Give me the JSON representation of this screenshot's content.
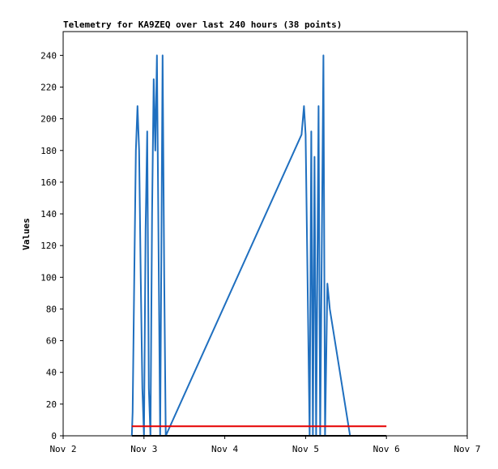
{
  "chart_data": {
    "type": "line",
    "title": "Telemetry for KA9ZEQ over last 240 hours (38 points)",
    "xlabel": "",
    "ylabel": "Values",
    "xlim": [
      0,
      5
    ],
    "ylim": [
      0,
      255
    ],
    "x_ticks": [
      {
        "value": 0,
        "label": "Nov 2"
      },
      {
        "value": 1,
        "label": "Nov 3"
      },
      {
        "value": 2,
        "label": "Nov 4"
      },
      {
        "value": 3,
        "label": "Nov 5"
      },
      {
        "value": 4,
        "label": "Nov 6"
      },
      {
        "value": 5,
        "label": "Nov 7"
      }
    ],
    "y_ticks": [
      0,
      20,
      40,
      60,
      80,
      100,
      120,
      140,
      160,
      180,
      200,
      220,
      240
    ],
    "grid": false,
    "legend": "none",
    "series": [
      {
        "color": "#1f6fbf",
        "points": [
          [
            0.85,
            0
          ],
          [
            0.86,
            15
          ],
          [
            0.88,
            100
          ],
          [
            0.9,
            180
          ],
          [
            0.92,
            208
          ],
          [
            0.94,
            180
          ],
          [
            0.96,
            100
          ],
          [
            0.98,
            30
          ],
          [
            1.0,
            0
          ],
          [
            1.02,
            130
          ],
          [
            1.04,
            192
          ],
          [
            1.06,
            30
          ],
          [
            1.08,
            0
          ],
          [
            1.1,
            140
          ],
          [
            1.12,
            225
          ],
          [
            1.14,
            180
          ],
          [
            1.16,
            240
          ],
          [
            1.18,
            120
          ],
          [
            1.2,
            0
          ],
          [
            1.23,
            240
          ],
          [
            1.25,
            100
          ],
          [
            1.27,
            0
          ],
          [
            2.95,
            190
          ],
          [
            2.98,
            208
          ],
          [
            3.0,
            190
          ],
          [
            3.05,
            0
          ],
          [
            3.07,
            192
          ],
          [
            3.09,
            0
          ],
          [
            3.11,
            176
          ],
          [
            3.13,
            0
          ],
          [
            3.16,
            208
          ],
          [
            3.18,
            0
          ],
          [
            3.22,
            240
          ],
          [
            3.24,
            0
          ],
          [
            3.27,
            96
          ],
          [
            3.3,
            80
          ],
          [
            3.55,
            0
          ],
          [
            3.57,
            0
          ]
        ]
      },
      {
        "color": "#e60000",
        "points": [
          [
            0.85,
            6
          ],
          [
            4.0,
            6
          ]
        ]
      },
      {
        "color": "#000000",
        "points": [
          [
            0.85,
            0
          ],
          [
            4.0,
            0
          ]
        ]
      }
    ]
  }
}
